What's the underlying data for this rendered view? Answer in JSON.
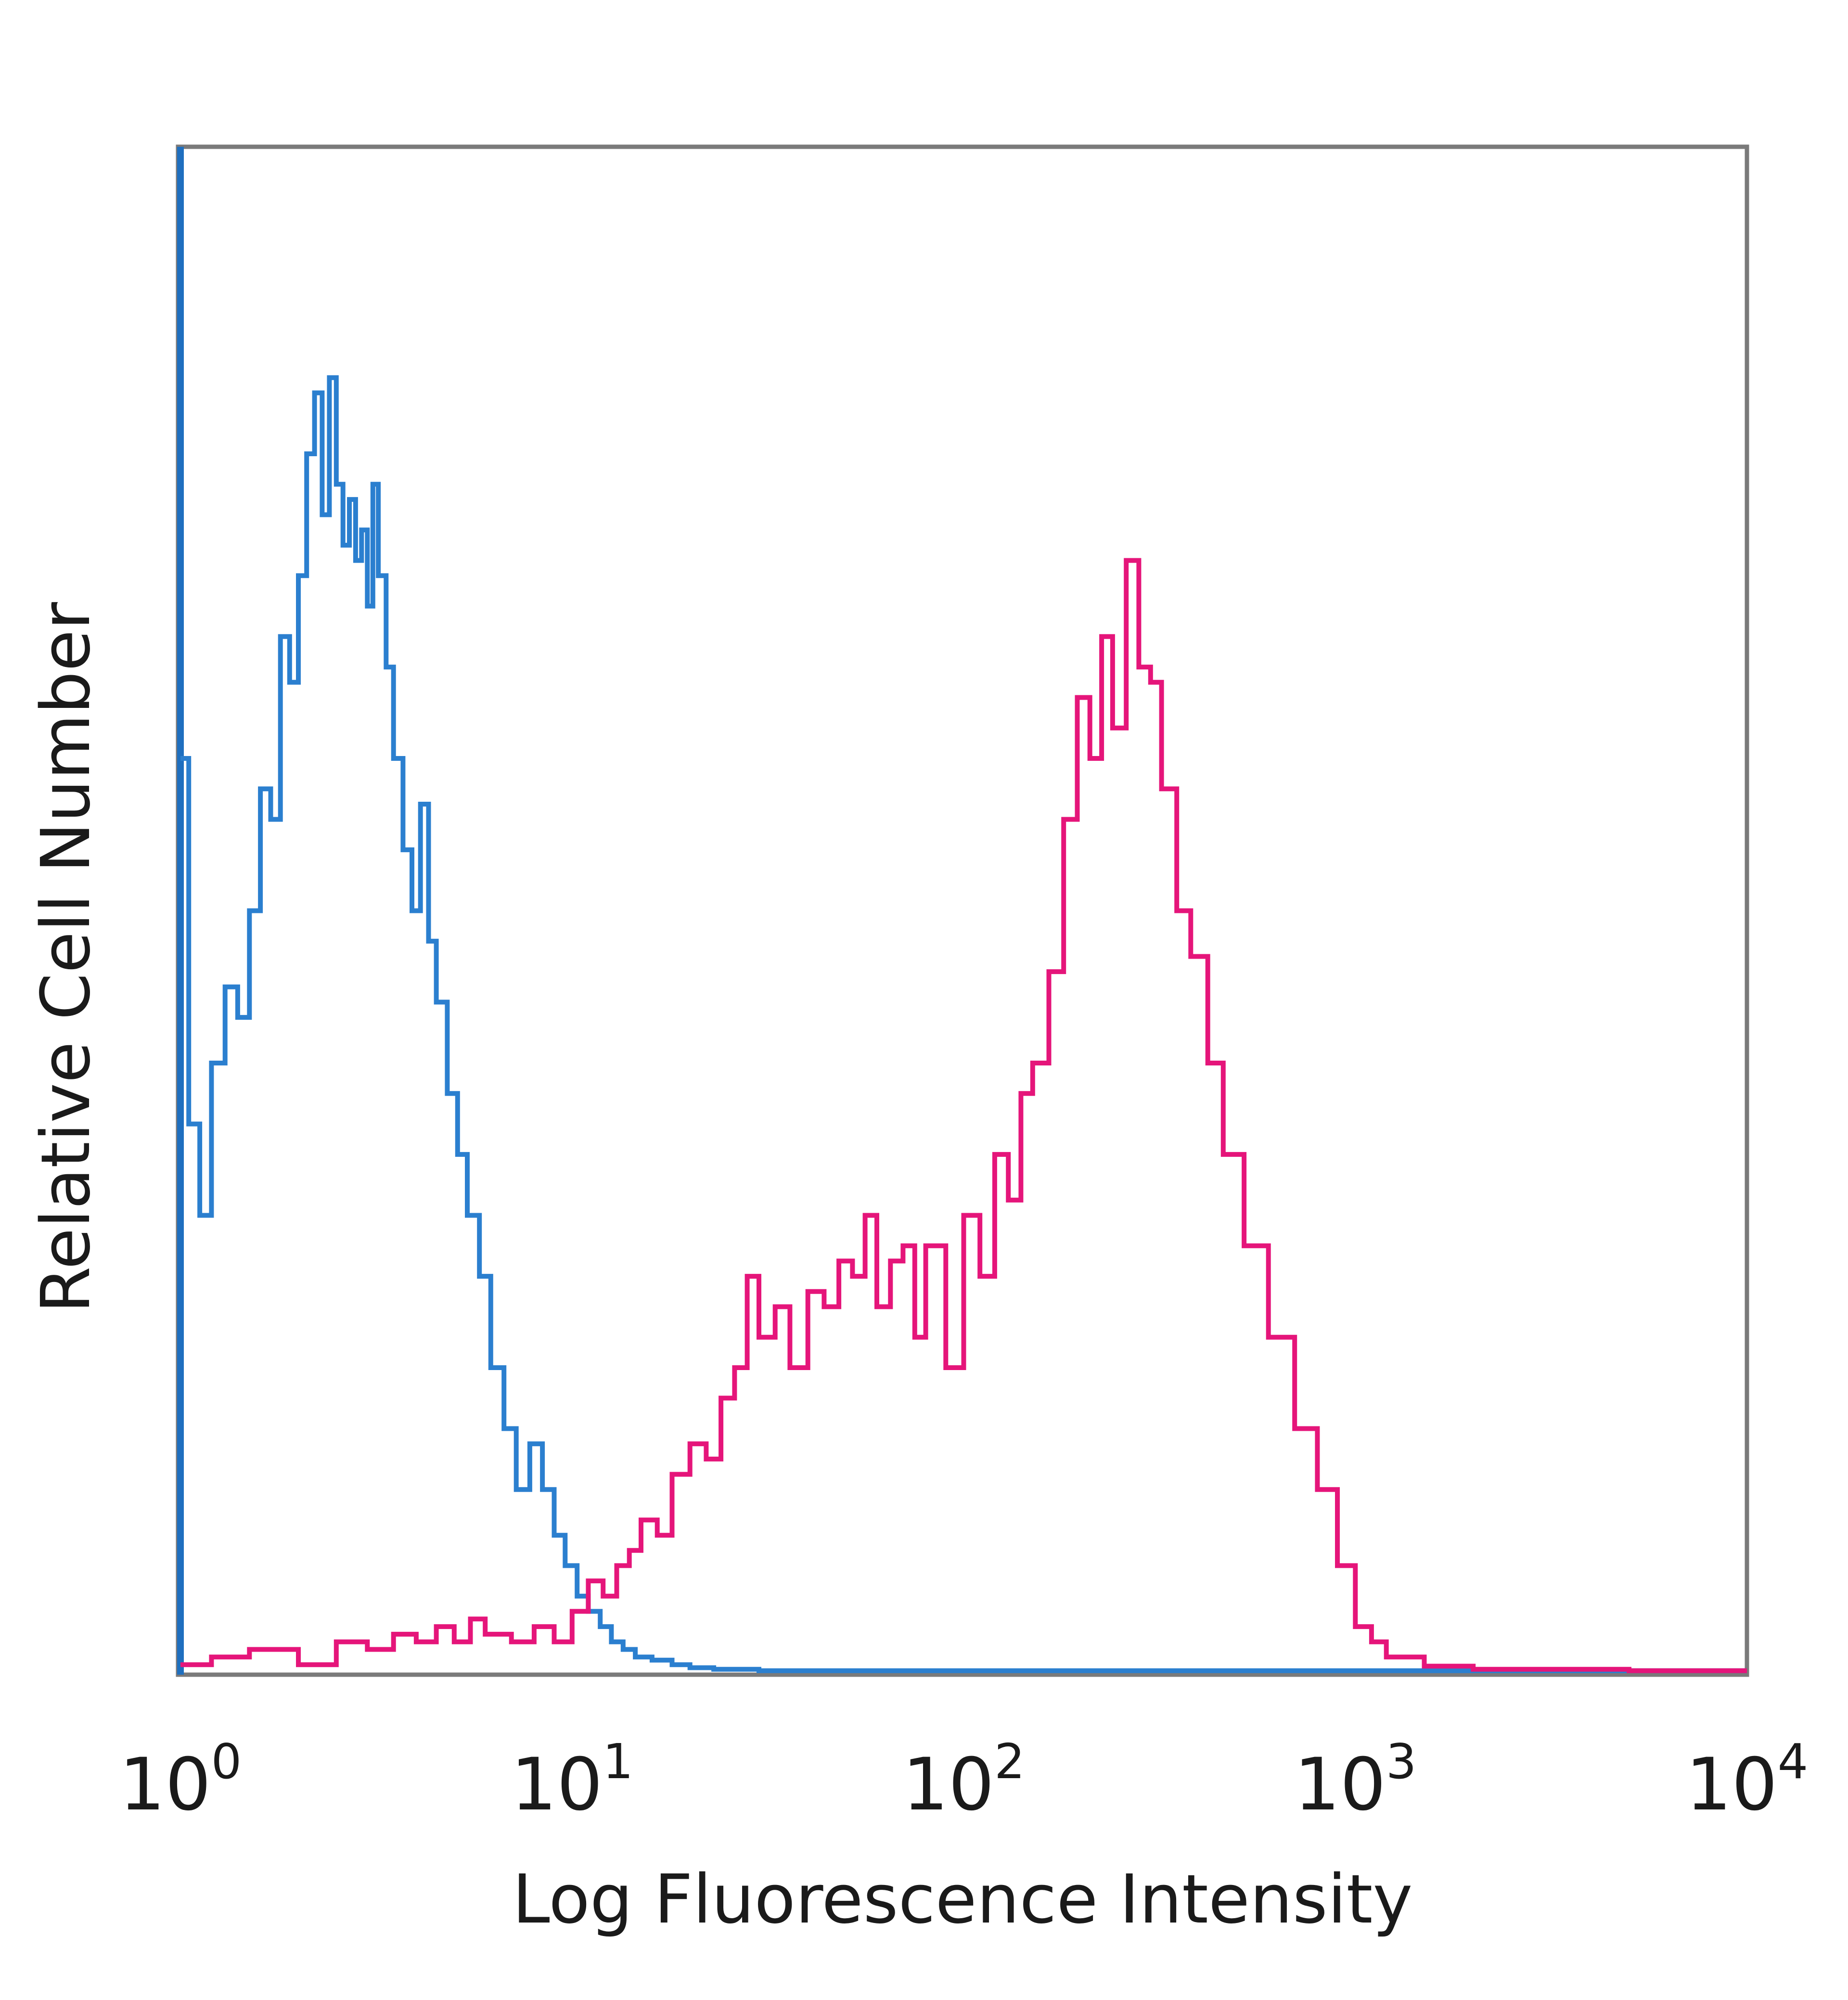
{
  "chart_data": {
    "type": "line",
    "title": "",
    "xlabel": "Log Fluorescence Intensity",
    "ylabel": "Relative Cell Number",
    "x_scale": "log",
    "xlim": [
      1,
      10000
    ],
    "ylim": [
      0,
      100
    ],
    "x_ticks": [
      {
        "base": "10",
        "exp": "0"
      },
      {
        "base": "10",
        "exp": "1"
      },
      {
        "base": "10",
        "exp": "2"
      },
      {
        "base": "10",
        "exp": "3"
      },
      {
        "base": "10",
        "exp": "4"
      }
    ],
    "grid": false,
    "legend": "none",
    "series": [
      {
        "color": "#2b7fcf",
        "x": [
          1.0,
          1.05,
          1.12,
          1.2,
          1.3,
          1.4,
          1.5,
          1.6,
          1.7,
          1.8,
          1.9,
          2.0,
          2.1,
          2.2,
          2.3,
          2.4,
          2.5,
          2.6,
          2.7,
          2.8,
          2.9,
          3.0,
          3.1,
          3.2,
          3.35,
          3.5,
          3.7,
          3.9,
          4.1,
          4.3,
          4.5,
          4.8,
          5.1,
          5.4,
          5.8,
          6.2,
          6.7,
          7.2,
          7.8,
          8.4,
          9.0,
          9.6,
          10.3,
          11.0,
          11.8,
          12.6,
          13.5,
          14.5,
          16,
          18,
          20,
          23,
          26,
          30,
          35,
          40,
          50,
          60,
          80,
          100,
          150,
          200,
          300,
          500,
          1000,
          2000,
          5000,
          10000
        ],
        "values": [
          60,
          36,
          30,
          40,
          45,
          43,
          50,
          58,
          56,
          68,
          65,
          72,
          80,
          84,
          76,
          85,
          78,
          74,
          77,
          73,
          75,
          70,
          78,
          72,
          66,
          60,
          54,
          50,
          57,
          48,
          44,
          38,
          34,
          30,
          26,
          20,
          16,
          12,
          15,
          12,
          9,
          7,
          5,
          4,
          3,
          2,
          1.5,
          1,
          0.8,
          0.5,
          0.3,
          0.2,
          0.2,
          0.1,
          0.1,
          0.1,
          0.1,
          0.1,
          0.1,
          0.1,
          0.1,
          0.1,
          0.1,
          0.1,
          0.1,
          0.1,
          0.1,
          0.1
        ]
      },
      {
        "color": "#e5157a",
        "x": [
          1.0,
          1.2,
          1.5,
          2.0,
          2.5,
          3.0,
          3.5,
          4.0,
          4.5,
          5.0,
          5.5,
          6.0,
          7.0,
          8.0,
          9.0,
          10.0,
          11.0,
          12.0,
          13.0,
          14.0,
          15.0,
          16.5,
          18.0,
          20.0,
          22.0,
          24.0,
          26.0,
          28.0,
          30.0,
          33.0,
          36.0,
          40.0,
          44.0,
          48.0,
          52.0,
          56.0,
          60.0,
          65.0,
          70.0,
          75.0,
          80.0,
          90.0,
          100.0,
          110.0,
          120.0,
          130.0,
          140.0,
          150.0,
          165.0,
          180.0,
          195.0,
          210.0,
          225.0,
          240.0,
          260.0,
          280.0,
          300.0,
          320.0,
          350.0,
          380.0,
          420.0,
          460.0,
          520.0,
          600.0,
          700.0,
          800.0,
          900.0,
          1000.0,
          1100.0,
          1200.0,
          1500.0,
          2000.0,
          5000.0,
          10000.0
        ],
        "values": [
          0.5,
          1,
          1.5,
          0.5,
          2,
          1.5,
          2.5,
          2,
          3,
          2,
          3.5,
          2.5,
          2,
          3,
          2,
          4,
          6,
          5,
          7,
          8,
          10,
          9,
          13,
          15,
          14,
          18,
          20,
          26,
          22,
          24,
          20,
          25,
          24,
          27,
          26,
          30,
          24,
          27,
          28,
          22,
          28,
          20,
          30,
          26,
          34,
          31,
          38,
          40,
          46,
          56,
          64,
          60,
          68,
          62,
          73,
          66,
          65,
          58,
          50,
          47,
          40,
          34,
          28,
          22,
          16,
          12,
          7,
          3,
          2,
          1,
          0.4,
          0.2,
          0.1,
          0.1
        ]
      }
    ]
  }
}
